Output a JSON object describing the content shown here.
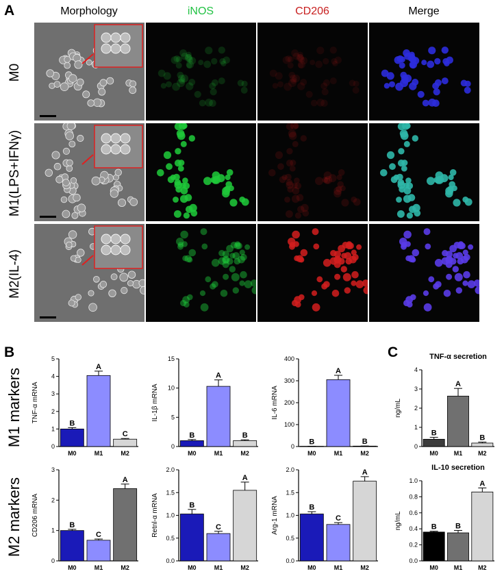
{
  "figure": {
    "panel_a": "A",
    "panel_b": "B",
    "panel_c": "C",
    "columns": [
      "Morphology",
      "iNOS",
      "CD206",
      "Merge"
    ],
    "column_colors": [
      "#000000",
      "#22c244",
      "#c81e1e",
      "#000000"
    ],
    "rows": [
      "M0",
      "M1(LPS+IFNγ)",
      "M2(IL-4)"
    ],
    "groups": [
      "M1 markers",
      "M2 markers"
    ],
    "iNOS_signal": [
      0.08,
      1.0,
      0.45
    ],
    "CD206_signal": [
      0.05,
      0.1,
      1.0
    ]
  },
  "chart_data": [
    {
      "id": "tnfa",
      "type": "bar",
      "title": "",
      "ylabel": "TNF-α  mRNA",
      "categories": [
        "M0",
        "M1",
        "M2"
      ],
      "values": [
        1.0,
        4.05,
        0.42
      ],
      "errors": [
        0.08,
        0.25,
        0.04
      ],
      "letters": [
        "B",
        "A",
        "C"
      ],
      "ylim": [
        0,
        5
      ],
      "yticks": [
        0,
        1,
        2,
        3,
        4,
        5
      ],
      "colors": [
        "#1a1ab8",
        "#8c8cff",
        "#d6d6d6"
      ]
    },
    {
      "id": "il1b",
      "type": "bar",
      "title": "",
      "ylabel": "IL-1β mRNA",
      "categories": [
        "M0",
        "M1",
        "M2"
      ],
      "values": [
        1.0,
        10.3,
        1.0
      ],
      "errors": [
        0.2,
        1.1,
        0.15
      ],
      "letters": [
        "B",
        "A",
        "B"
      ],
      "ylim": [
        0,
        15
      ],
      "yticks": [
        0,
        5,
        10,
        15
      ],
      "colors": [
        "#1a1ab8",
        "#8c8cff",
        "#d6d6d6"
      ]
    },
    {
      "id": "il6",
      "type": "bar",
      "title": "",
      "ylabel": "IL-6  mRNA",
      "categories": [
        "M0",
        "M1",
        "M2"
      ],
      "values": [
        1.0,
        305,
        2.0
      ],
      "errors": [
        0.3,
        20,
        0.5
      ],
      "letters": [
        "B",
        "A",
        "B"
      ],
      "ylim": [
        0,
        400
      ],
      "yticks": [
        0,
        100,
        200,
        300,
        400
      ],
      "colors": [
        "#1a1ab8",
        "#8c8cff",
        "#d6d6d6"
      ]
    },
    {
      "id": "tnfsec",
      "type": "bar",
      "title": "TNF-α secretion",
      "ylabel": "ng/mL",
      "categories": [
        "M0",
        "M1",
        "M2"
      ],
      "values": [
        0.38,
        2.63,
        0.18
      ],
      "errors": [
        0.1,
        0.4,
        0.05
      ],
      "letters": [
        "B",
        "A",
        "B"
      ],
      "ylim": [
        0,
        4
      ],
      "yticks": [
        0,
        1,
        2,
        3,
        4
      ],
      "colors": [
        "#3c3c3c",
        "#707070",
        "#d6d6d6"
      ]
    },
    {
      "id": "cd206",
      "type": "bar",
      "title": "",
      "ylabel": "CD206  mRNA",
      "categories": [
        "M0",
        "M1",
        "M2"
      ],
      "values": [
        1.0,
        0.68,
        2.38
      ],
      "errors": [
        0.04,
        0.04,
        0.15
      ],
      "letters": [
        "B",
        "C",
        "A"
      ],
      "ylim": [
        0,
        3
      ],
      "yticks": [
        0,
        1,
        2,
        3
      ],
      "colors": [
        "#1a1ab8",
        "#8c8cff",
        "#707070"
      ]
    },
    {
      "id": "retnl",
      "type": "bar",
      "title": "",
      "ylabel": "Retnl-α mRNA",
      "categories": [
        "M0",
        "M1",
        "M2"
      ],
      "values": [
        1.03,
        0.6,
        1.55
      ],
      "errors": [
        0.1,
        0.05,
        0.18
      ],
      "letters": [
        "B",
        "C",
        "A"
      ],
      "ylim": [
        0,
        2
      ],
      "yticks": [
        0.0,
        0.5,
        1.0,
        1.5,
        2.0
      ],
      "colors": [
        "#1a1ab8",
        "#8c8cff",
        "#d6d6d6"
      ]
    },
    {
      "id": "arg1",
      "type": "bar",
      "title": "",
      "ylabel": "Arg-1  mRNA",
      "categories": [
        "M0",
        "M1",
        "M2"
      ],
      "values": [
        1.03,
        0.8,
        1.75
      ],
      "errors": [
        0.05,
        0.04,
        0.1
      ],
      "letters": [
        "B",
        "C",
        "A"
      ],
      "ylim": [
        0,
        2
      ],
      "yticks": [
        0.0,
        0.5,
        1.0,
        1.5,
        2.0
      ],
      "colors": [
        "#1a1ab8",
        "#8c8cff",
        "#d6d6d6"
      ]
    },
    {
      "id": "il10sec",
      "type": "bar",
      "title": "IL-10 secretion",
      "ylabel": "ng/mL",
      "categories": [
        "M0",
        "M1",
        "M2"
      ],
      "values": [
        0.36,
        0.35,
        0.86
      ],
      "errors": [
        0.01,
        0.03,
        0.05
      ],
      "letters": [
        "B",
        "B",
        "A"
      ],
      "ylim": [
        0,
        1
      ],
      "yticks": [
        0.0,
        0.2,
        0.4,
        0.6,
        0.8,
        1.0
      ],
      "colors": [
        "#000000",
        "#707070",
        "#d6d6d6"
      ]
    }
  ]
}
